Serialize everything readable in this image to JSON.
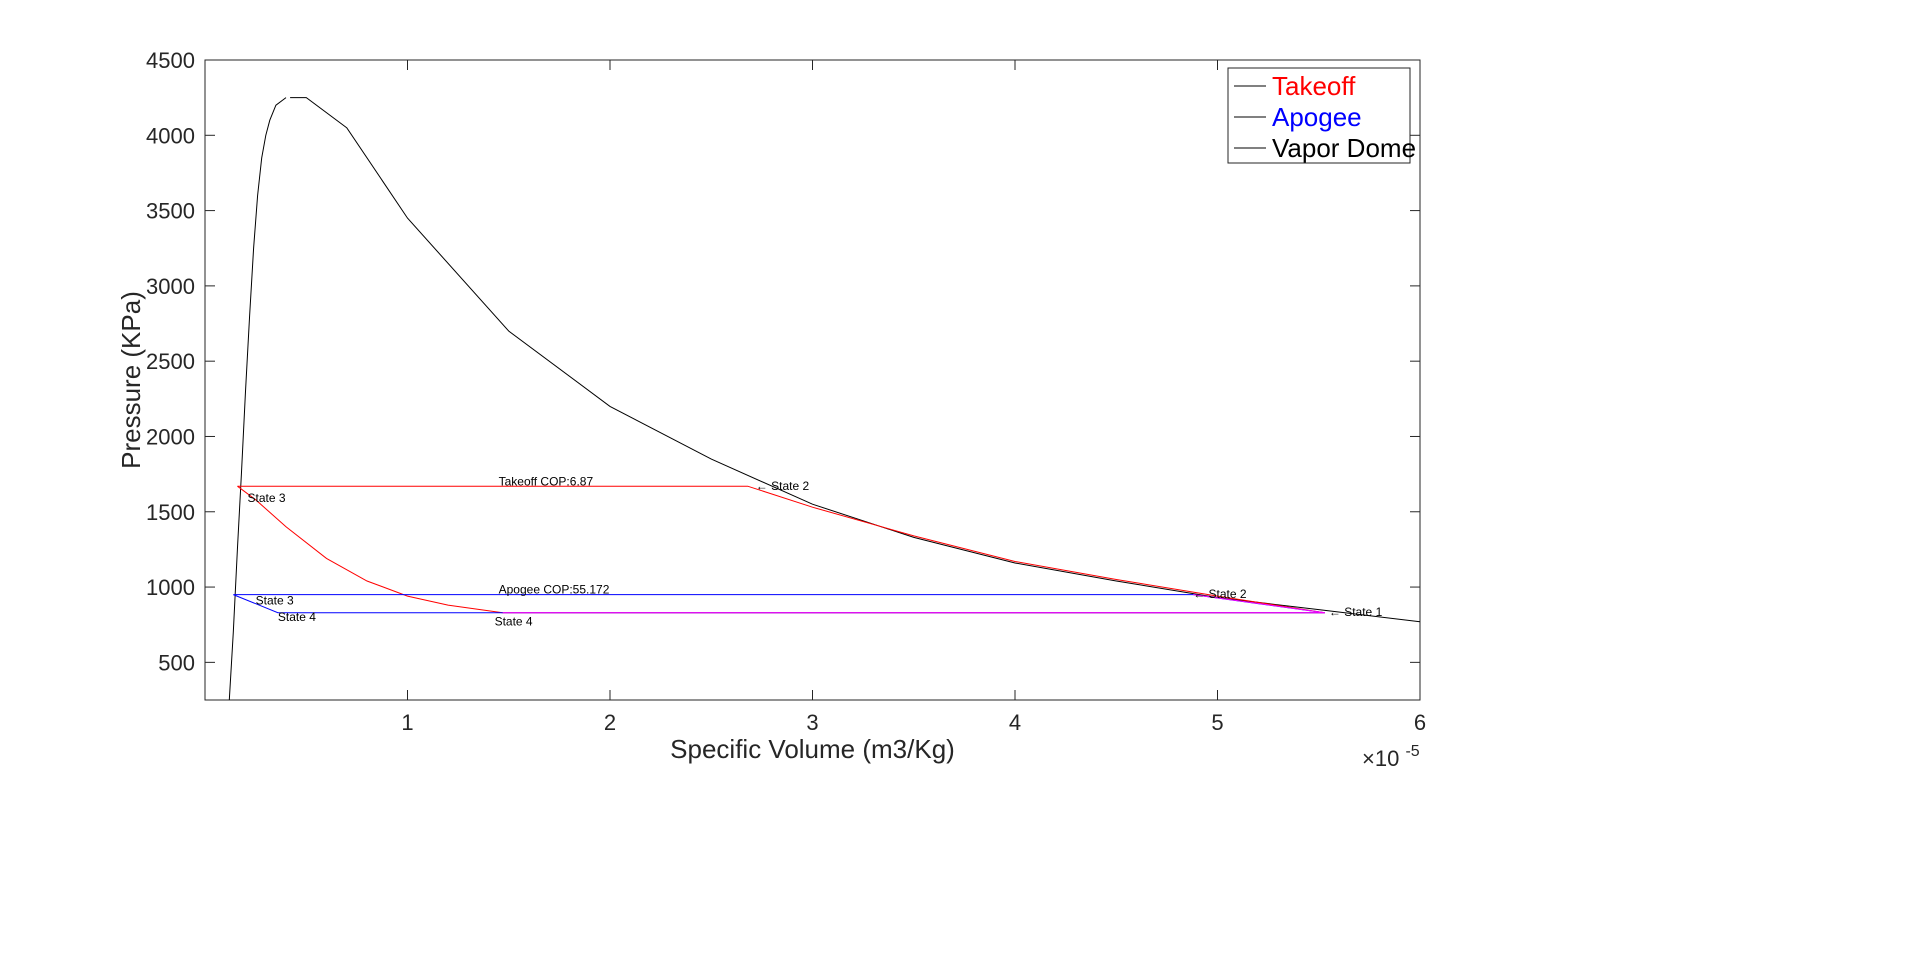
{
  "chart_data": {
    "type": "line",
    "xlabel": "Specific Volume (m3/Kg)",
    "ylabel": "Pressure (KPa)",
    "x_exponent_label": "×10",
    "x_exponent_power": "-5",
    "xlim": [
      0,
      6
    ],
    "ylim": [
      250,
      4500
    ],
    "x_ticks": [
      1,
      2,
      3,
      4,
      5,
      6
    ],
    "x_tick_labels": [
      "1",
      "2",
      "3",
      "4",
      "5",
      "6"
    ],
    "y_ticks": [
      500,
      1000,
      1500,
      2000,
      2500,
      3000,
      3500,
      4000,
      4500
    ],
    "y_tick_labels": [
      "500",
      "1000",
      "1500",
      "2000",
      "2500",
      "3000",
      "3500",
      "4000",
      "4500"
    ],
    "grid": false,
    "legend_position": "top-right",
    "legend": [
      {
        "label": "Takeoff",
        "color": "#ff0000"
      },
      {
        "label": "Apogee",
        "color": "#0000ff"
      },
      {
        "label": "Vapor Dome",
        "color": "#000000"
      }
    ],
    "series": [
      {
        "name": "Vapor Dome",
        "color": "#000000",
        "x": [
          0.12,
          0.14,
          0.16,
          0.18,
          0.2,
          0.22,
          0.24,
          0.26,
          0.28,
          0.3,
          0.32,
          0.35,
          0.4
        ],
        "y": [
          250,
          700,
          1250,
          1750,
          2300,
          2800,
          3250,
          3600,
          3850,
          4000,
          4100,
          4200,
          4250
        ],
        "y_alt_segment_x": [
          0.42,
          0.5,
          0.7,
          1.0,
          1.5,
          2.0,
          2.5,
          3.0,
          3.5,
          4.0,
          4.5,
          5.0,
          5.5,
          6.0
        ],
        "y_alt_segment_y": [
          4250,
          4250,
          4050,
          3450,
          2700,
          2200,
          1850,
          1550,
          1330,
          1160,
          1040,
          930,
          850,
          770
        ]
      },
      {
        "name": "Takeoff",
        "color": "#ff0000",
        "x": [
          0.16,
          2.68,
          3.0,
          3.5,
          4.0,
          4.5,
          5.0,
          5.53,
          1.47,
          1.2,
          1.0,
          0.8,
          0.6,
          0.4,
          0.25,
          0.16
        ],
        "y": [
          1670,
          1670,
          1530,
          1340,
          1170,
          1050,
          940,
          830,
          830,
          880,
          940,
          1040,
          1190,
          1400,
          1580,
          1670
        ]
      },
      {
        "name": "Apogee",
        "color": "#0000ff",
        "x": [
          0.14,
          4.88,
          5.2,
          5.53,
          0.36,
          0.14
        ],
        "y": [
          950,
          950,
          890,
          830,
          830,
          950
        ]
      }
    ],
    "overlap_segments": [
      {
        "color": "#ff00ff",
        "x": [
          1.47,
          5.53
        ],
        "y": [
          830,
          830
        ]
      },
      {
        "color": "#ff00ff",
        "x": [
          4.88,
          5.53
        ],
        "y": [
          950,
          830
        ]
      }
    ],
    "annotations": [
      {
        "text": "Takeoff COP:6.87",
        "x": 1.45,
        "y": 1700
      },
      {
        "text": "← State 2",
        "x": 2.72,
        "y": 1670
      },
      {
        "text": "State 3",
        "x": 0.21,
        "y": 1590
      },
      {
        "text": "Apogee COP:55.172",
        "x": 1.45,
        "y": 985
      },
      {
        "text": "← State 2",
        "x": 4.88,
        "y": 955
      },
      {
        "text": "← State 1",
        "x": 5.55,
        "y": 835
      },
      {
        "text": "State 3",
        "x": 0.25,
        "y": 910
      },
      {
        "text": "State 4",
        "x": 0.36,
        "y": 800
      },
      {
        "text": "State 4",
        "x": 1.43,
        "y": 770
      }
    ]
  }
}
